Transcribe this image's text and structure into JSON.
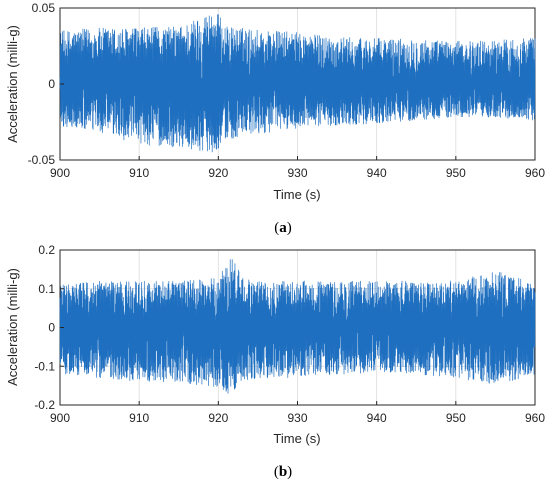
{
  "chart_data": [
    {
      "type": "line",
      "panel": "(a)",
      "caption_open": "(",
      "caption_letter": "a",
      "caption_close": ")",
      "xlabel": "Time (s)",
      "ylabel": "Acceleration (milli-g)",
      "xlim": [
        900,
        960
      ],
      "ylim": [
        -0.05,
        0.05
      ],
      "xticks": [
        900,
        910,
        920,
        930,
        940,
        950,
        960
      ],
      "xtick_labels": [
        "900",
        "910",
        "920",
        "930",
        "940",
        "950",
        "960"
      ],
      "yticks": [
        -0.05,
        0,
        0.05
      ],
      "ytick_labels": [
        "-0.05",
        "0",
        "0.05"
      ],
      "grid": true,
      "series_color": "#1f6fc0",
      "series": [
        {
          "x": [
            900,
            905,
            910,
            915,
            918,
            919.5,
            921,
            925,
            930,
            935,
            940,
            945,
            950,
            955,
            960
          ],
          "envelope_max": [
            0.035,
            0.037,
            0.037,
            0.038,
            0.045,
            0.05,
            0.038,
            0.036,
            0.034,
            0.031,
            0.03,
            0.03,
            0.028,
            0.029,
            0.031
          ],
          "envelope_min": [
            -0.028,
            -0.032,
            -0.04,
            -0.042,
            -0.044,
            -0.045,
            -0.037,
            -0.033,
            -0.029,
            -0.027,
            -0.026,
            -0.024,
            -0.022,
            -0.022,
            -0.024
          ]
        }
      ]
    },
    {
      "type": "line",
      "panel": "(b)",
      "caption_open": "(",
      "caption_letter": "b",
      "caption_close": ")",
      "xlabel": "Time (s)",
      "ylabel": "Acceleration (milli-g)",
      "xlim": [
        900,
        960
      ],
      "ylim": [
        -0.2,
        0.2
      ],
      "xticks": [
        900,
        910,
        920,
        930,
        940,
        950,
        960
      ],
      "xtick_labels": [
        "900",
        "910",
        "920",
        "930",
        "940",
        "950",
        "960"
      ],
      "yticks": [
        -0.2,
        -0.1,
        0,
        0.1,
        0.2
      ],
      "ytick_labels": [
        "-0.2",
        "-0.1",
        "0",
        "0.1",
        "0.2"
      ],
      "grid": true,
      "series_color": "#1f6fc0",
      "series": [
        {
          "x": [
            900,
            905,
            910,
            915,
            920,
            921.8,
            923,
            925,
            930,
            935,
            940,
            945,
            950,
            955.5,
            960
          ],
          "envelope_max": [
            0.11,
            0.12,
            0.12,
            0.12,
            0.13,
            0.19,
            0.13,
            0.12,
            0.12,
            0.12,
            0.12,
            0.12,
            0.12,
            0.15,
            0.11
          ],
          "envelope_min": [
            -0.12,
            -0.13,
            -0.14,
            -0.14,
            -0.16,
            -0.19,
            -0.14,
            -0.13,
            -0.13,
            -0.12,
            -0.12,
            -0.12,
            -0.13,
            -0.15,
            -0.12
          ]
        }
      ]
    }
  ]
}
